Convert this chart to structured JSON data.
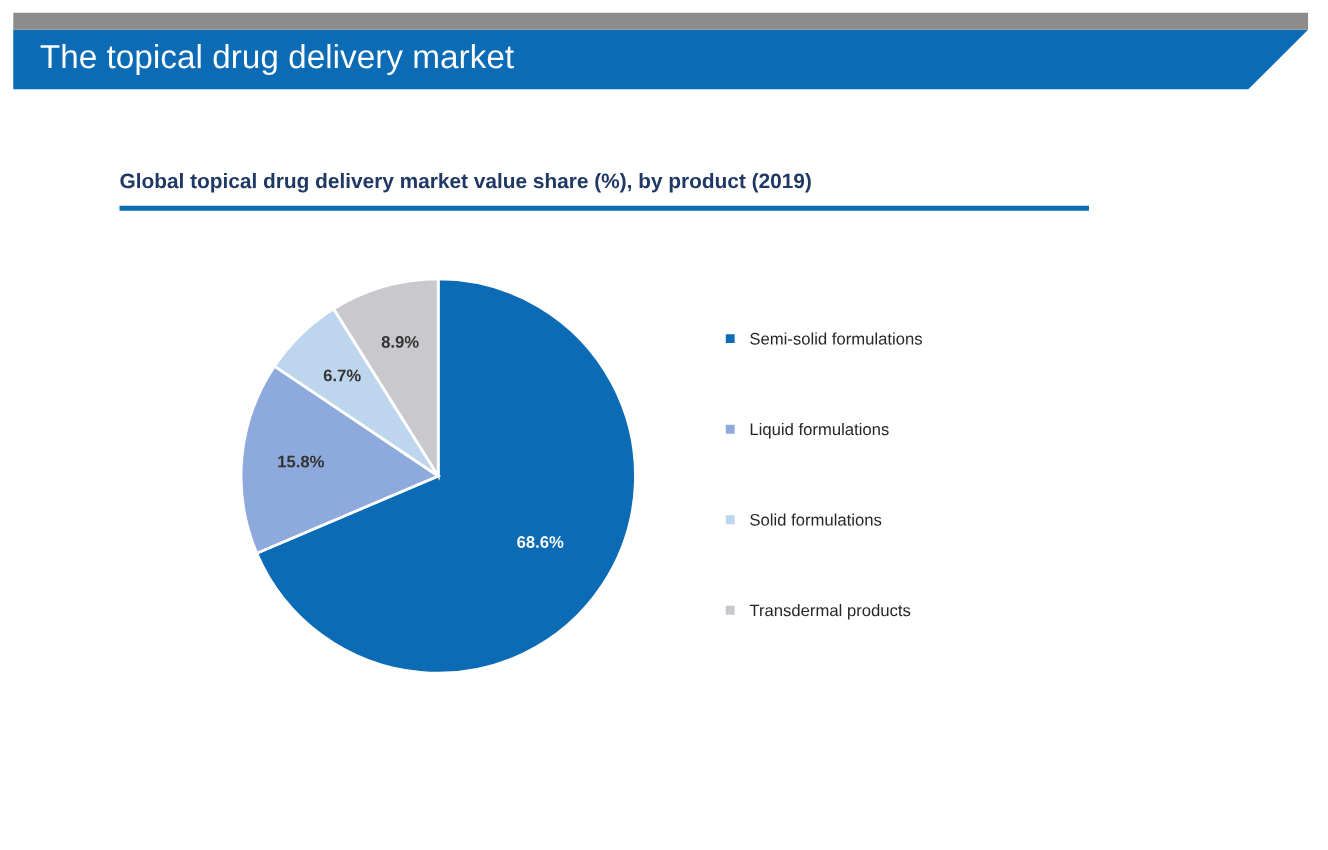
{
  "chart_data": {
    "type": "pie",
    "title": "The topical drug delivery market",
    "subtitle": "Global topical drug delivery market value share (%), by product (2019)",
    "categories": [
      "Semi-solid formulations",
      "Liquid formulations",
      "Solid formulations",
      "Transdermal products"
    ],
    "values": [
      68.6,
      15.8,
      6.7,
      8.9
    ],
    "colors": [
      "#0b6bb5",
      "#8eaadc",
      "#bdd6ee",
      "#c9c9cd"
    ],
    "value_labels": [
      "68.6%",
      "15.8%",
      "6.7%",
      "8.9%"
    ],
    "legend": "right"
  }
}
